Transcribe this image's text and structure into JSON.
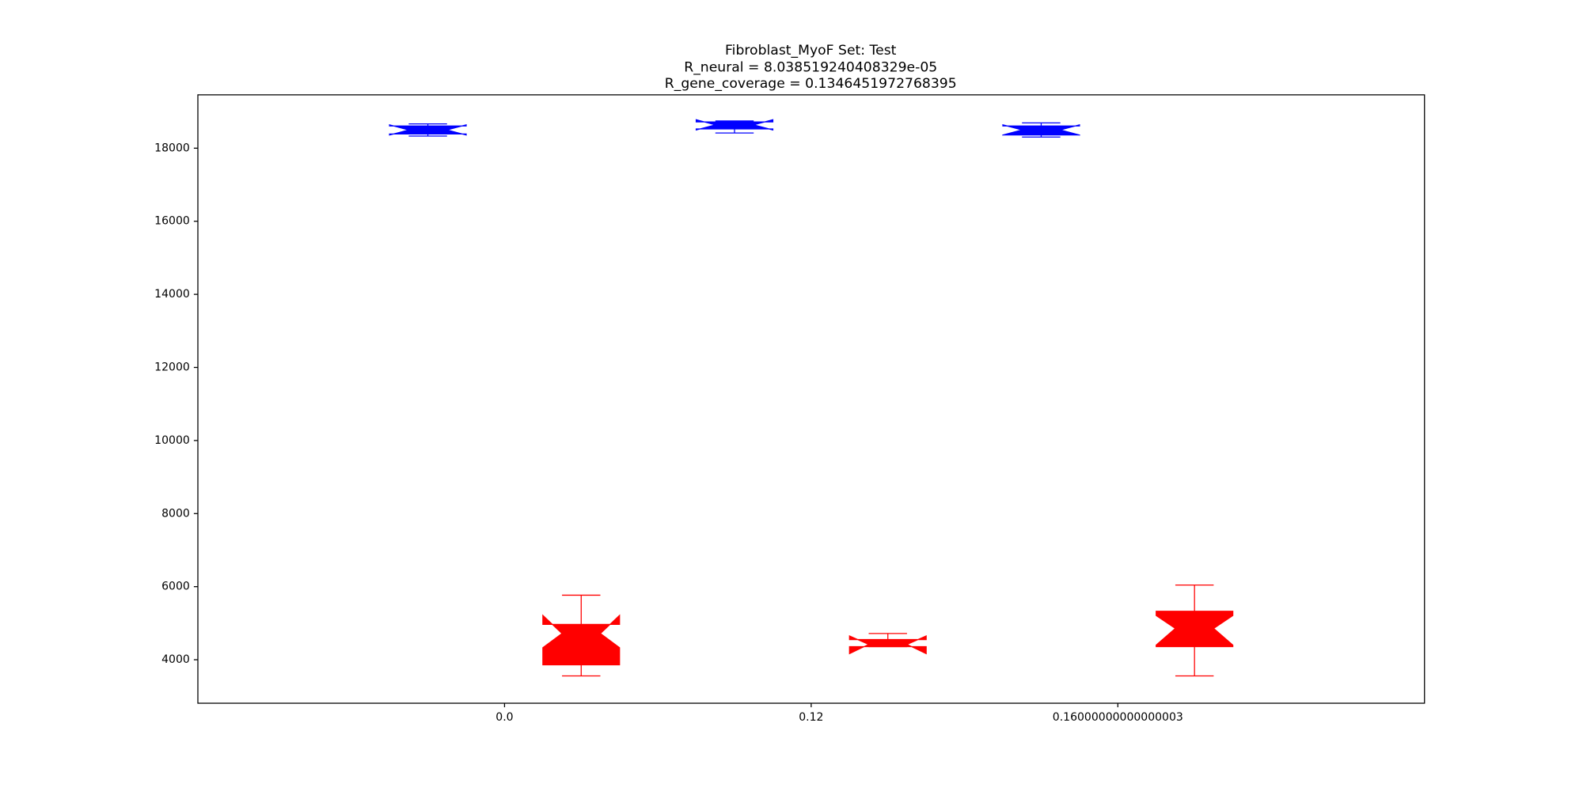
{
  "chart_data": {
    "type": "boxplot",
    "title": [
      "Fibroblast_MyoF Set: Test",
      "R_neural = 8.038519240408329e-05",
      "R_gene_coverage = 0.1346451972768395"
    ],
    "categories": [
      "0.0",
      "0.12",
      "0.16000000000000003"
    ],
    "notch": true,
    "ylim": [
      2810,
      19460
    ],
    "yticks": [
      4000,
      6000,
      8000,
      10000,
      12000,
      14000,
      16000,
      18000
    ],
    "series": [
      {
        "color": "#0000ff",
        "boxes": [
          {
            "whislo": 18333,
            "q1": 18388,
            "median": 18499,
            "q3": 18609,
            "whishi": 18664,
            "notch": [
              18360,
              18640
            ]
          },
          {
            "whislo": 18416,
            "q1": 18527,
            "median": 18637,
            "q3": 18720,
            "whishi": 18747,
            "notch": [
              18500,
              18780
            ]
          },
          {
            "whislo": 18305,
            "q1": 18361,
            "median": 18499,
            "q3": 18609,
            "whishi": 18692,
            "notch": [
              18360,
              18640
            ]
          }
        ]
      },
      {
        "color": "#ff0000",
        "boxes": [
          {
            "whislo": 3558,
            "q1": 3862,
            "median": 4718,
            "q3": 4967,
            "whishi": 5767,
            "notch": [
              4330,
              5215
            ]
          },
          {
            "whislo": 4359,
            "q1": 4359,
            "median": 4420,
            "q3": 4552,
            "whishi": 4718,
            "notch": [
              4166,
              4650
            ]
          },
          {
            "whislo": 3558,
            "q1": 4359,
            "median": 4856,
            "q3": 5326,
            "whishi": 6044,
            "notch": [
              4400,
              5210
            ]
          }
        ]
      }
    ]
  }
}
